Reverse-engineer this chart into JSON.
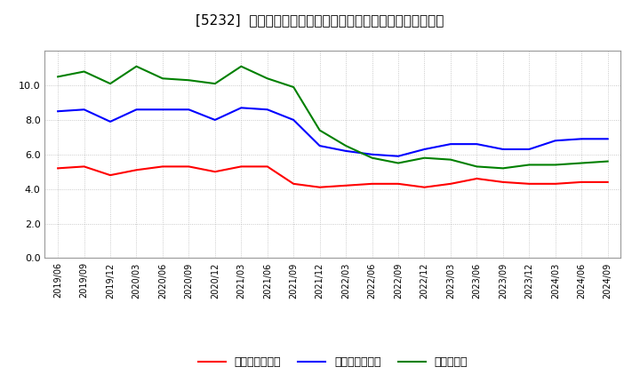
{
  "title": "[5232]  売上債権回転率、買入債務回転率、在庫回転率の推移",
  "x_labels": [
    "2019/06",
    "2019/09",
    "2019/12",
    "2020/03",
    "2020/06",
    "2020/09",
    "2020/12",
    "2021/03",
    "2021/06",
    "2021/09",
    "2021/12",
    "2022/03",
    "2022/06",
    "2022/09",
    "2022/12",
    "2023/03",
    "2023/06",
    "2023/09",
    "2023/12",
    "2024/03",
    "2024/06",
    "2024/09"
  ],
  "receivables_turnover": [
    5.2,
    5.3,
    4.8,
    5.1,
    5.3,
    5.3,
    5.0,
    5.3,
    5.3,
    4.3,
    4.1,
    4.2,
    4.3,
    4.3,
    4.1,
    4.3,
    4.6,
    4.4,
    4.3,
    4.3,
    4.4,
    4.4
  ],
  "payables_turnover": [
    8.5,
    8.6,
    7.9,
    8.6,
    8.6,
    8.6,
    8.0,
    8.7,
    8.6,
    8.0,
    6.5,
    6.2,
    6.0,
    5.9,
    6.3,
    6.6,
    6.6,
    6.3,
    6.3,
    6.8,
    6.9,
    6.9
  ],
  "inventory_turnover": [
    10.5,
    10.8,
    10.1,
    11.1,
    10.4,
    10.3,
    10.1,
    11.1,
    10.4,
    9.9,
    7.4,
    6.5,
    5.8,
    5.5,
    5.8,
    5.7,
    5.3,
    5.2,
    5.4,
    5.4,
    5.5,
    5.6
  ],
  "receivables_color": "#ff0000",
  "payables_color": "#0000ff",
  "inventory_color": "#008000",
  "ylim": [
    0.0,
    12.0
  ],
  "yticks": [
    0.0,
    2.0,
    4.0,
    6.0,
    8.0,
    10.0
  ],
  "legend_labels": [
    "売上債権回転率",
    "買入債務回転率",
    "在庫回転率"
  ],
  "background_color": "#ffffff",
  "grid_color": "#aaaaaa",
  "title_fontsize": 11,
  "legend_fontsize": 9,
  "tick_fontsize": 7,
  "ytick_fontsize": 8
}
